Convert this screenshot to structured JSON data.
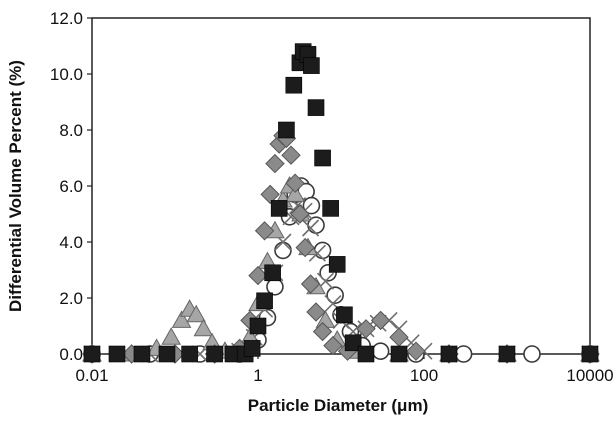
{
  "chart_data": {
    "type": "scatter",
    "title": "",
    "xlabel": "Particle Diameter (μm)",
    "ylabel": "Differential Volume Percent (%)",
    "x_scale": "log",
    "xlim": [
      0.01,
      10000
    ],
    "ylim": [
      0,
      12
    ],
    "x_ticks": [
      "0.01",
      "1",
      "100",
      "10000"
    ],
    "y_ticks": [
      "0.0",
      "2.0",
      "4.0",
      "6.0",
      "8.0",
      "10.0",
      "12.0"
    ],
    "grid": false,
    "legend": "none",
    "series": [
      {
        "marker": "square",
        "color": "#1c1c1c",
        "points": [
          [
            0.01,
            0
          ],
          [
            0.02,
            0
          ],
          [
            0.04,
            0
          ],
          [
            0.08,
            0
          ],
          [
            0.15,
            0
          ],
          [
            0.3,
            0
          ],
          [
            0.5,
            0
          ],
          [
            0.7,
            0
          ],
          [
            0.85,
            0.2
          ],
          [
            1.0,
            1.0
          ],
          [
            1.2,
            1.9
          ],
          [
            1.5,
            2.9
          ],
          [
            1.8,
            5.2
          ],
          [
            2.2,
            8.0
          ],
          [
            2.7,
            9.6
          ],
          [
            3.2,
            10.4
          ],
          [
            3.5,
            10.8
          ],
          [
            4.0,
            10.7
          ],
          [
            4.4,
            10.3
          ],
          [
            5.0,
            8.8
          ],
          [
            6.0,
            7.0
          ],
          [
            7.5,
            5.2
          ],
          [
            9.0,
            3.2
          ],
          [
            11,
            1.4
          ],
          [
            14,
            0.4
          ],
          [
            20,
            0
          ],
          [
            50,
            0
          ],
          [
            200,
            0
          ],
          [
            1000,
            0
          ],
          [
            10000,
            0
          ]
        ]
      },
      {
        "marker": "diamond",
        "color": "#8a8a8a",
        "points": [
          [
            0.01,
            0
          ],
          [
            0.03,
            0
          ],
          [
            0.1,
            0
          ],
          [
            0.3,
            0
          ],
          [
            0.6,
            0.2
          ],
          [
            0.8,
            1.2
          ],
          [
            1.0,
            2.8
          ],
          [
            1.2,
            4.4
          ],
          [
            1.4,
            5.7
          ],
          [
            1.6,
            6.8
          ],
          [
            1.8,
            7.5
          ],
          [
            2.0,
            7.8
          ],
          [
            2.2,
            7.7
          ],
          [
            2.5,
            7.1
          ],
          [
            2.8,
            6.1
          ],
          [
            3.2,
            5.0
          ],
          [
            3.7,
            3.8
          ],
          [
            4.3,
            2.5
          ],
          [
            5.0,
            1.5
          ],
          [
            6.0,
            0.8
          ],
          [
            8.0,
            0.3
          ],
          [
            12,
            0.1
          ],
          [
            20,
            0.9
          ],
          [
            30,
            1.2
          ],
          [
            50,
            0.6
          ],
          [
            80,
            0.1
          ],
          [
            200,
            0
          ],
          [
            1000,
            0
          ],
          [
            10000,
            0
          ]
        ]
      },
      {
        "marker": "triangle",
        "color": "#a6a6a6",
        "points": [
          [
            0.01,
            0
          ],
          [
            0.03,
            0
          ],
          [
            0.06,
            0.2
          ],
          [
            0.09,
            0.6
          ],
          [
            0.12,
            1.2
          ],
          [
            0.15,
            1.6
          ],
          [
            0.18,
            1.4
          ],
          [
            0.22,
            0.9
          ],
          [
            0.28,
            0.4
          ],
          [
            0.4,
            0.1
          ],
          [
            0.6,
            0.1
          ],
          [
            0.8,
            0.6
          ],
          [
            1.0,
            1.8
          ],
          [
            1.3,
            3.3
          ],
          [
            1.6,
            4.4
          ],
          [
            2.0,
            5.5
          ],
          [
            2.4,
            6.0
          ],
          [
            2.8,
            5.7
          ],
          [
            3.3,
            5.0
          ],
          [
            4.0,
            3.8
          ],
          [
            5.0,
            2.4
          ],
          [
            6.5,
            1.2
          ],
          [
            9.0,
            0.5
          ],
          [
            15,
            0.1
          ],
          [
            50,
            0
          ],
          [
            200,
            0
          ],
          [
            1000,
            0
          ],
          [
            10000,
            0
          ]
        ]
      },
      {
        "marker": "circle",
        "color": "#3a3a3a",
        "points": [
          [
            0.01,
            0
          ],
          [
            0.05,
            0
          ],
          [
            0.2,
            0
          ],
          [
            0.6,
            0
          ],
          [
            1.0,
            0.5
          ],
          [
            1.3,
            1.3
          ],
          [
            1.6,
            2.4
          ],
          [
            2.0,
            3.7
          ],
          [
            2.4,
            4.9
          ],
          [
            2.8,
            5.7
          ],
          [
            3.3,
            6.0
          ],
          [
            3.8,
            5.8
          ],
          [
            4.4,
            5.3
          ],
          [
            5.0,
            4.6
          ],
          [
            6.0,
            3.7
          ],
          [
            7.0,
            2.9
          ],
          [
            8.5,
            2.1
          ],
          [
            10,
            1.4
          ],
          [
            13,
            0.8
          ],
          [
            18,
            0.3
          ],
          [
            30,
            0.1
          ],
          [
            80,
            0
          ],
          [
            300,
            0
          ],
          [
            2000,
            0
          ],
          [
            10000,
            0
          ]
        ]
      },
      {
        "marker": "cross",
        "color": "#707070",
        "points": [
          [
            0.01,
            0
          ],
          [
            0.05,
            0
          ],
          [
            0.2,
            0
          ],
          [
            0.6,
            0.1
          ],
          [
            0.9,
            0.6
          ],
          [
            1.2,
            1.6
          ],
          [
            1.6,
            2.9
          ],
          [
            2.0,
            4.0
          ],
          [
            2.5,
            4.9
          ],
          [
            3.0,
            5.3
          ],
          [
            3.6,
            5.1
          ],
          [
            4.3,
            4.5
          ],
          [
            5.2,
            3.6
          ],
          [
            6.5,
            2.6
          ],
          [
            8.0,
            1.8
          ],
          [
            10,
            1.2
          ],
          [
            14,
            0.8
          ],
          [
            20,
            0.9
          ],
          [
            28,
            1.1
          ],
          [
            38,
            1.2
          ],
          [
            50,
            0.9
          ],
          [
            70,
            0.4
          ],
          [
            100,
            0.1
          ],
          [
            200,
            0
          ],
          [
            1000,
            0
          ],
          [
            10000,
            0
          ]
        ]
      }
    ]
  }
}
